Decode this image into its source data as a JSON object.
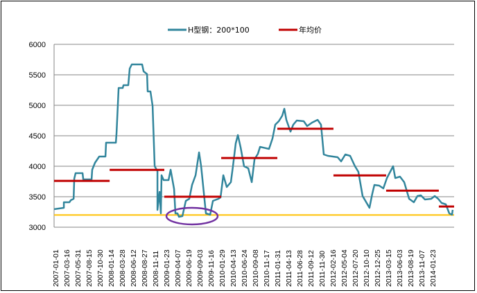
{
  "chart_data": {
    "type": "line",
    "title": "",
    "xlabel": "",
    "ylabel": "",
    "ylim": [
      3000,
      6000
    ],
    "yticks": [
      3000,
      3500,
      4000,
      4500,
      5000,
      5500,
      6000
    ],
    "grid": true,
    "legend_position": "top",
    "categories": [
      "2007-01-01",
      "2007-03-16",
      "2007-05-31",
      "2007-08-15",
      "2007-10-30",
      "2008-01-14",
      "2008-03-28",
      "2008-06-12",
      "2008-08-27",
      "2008-11-11",
      "2009-01-23",
      "2009-04-07",
      "2009-06-19",
      "2009-09-03",
      "2009-11-16",
      "2010-01-29",
      "2010-04-13",
      "2010-06-24",
      "2010-09-08",
      "2010-11-17",
      "2011-01-31",
      "2011-04-13",
      "2011-06-28",
      "2011-09-12",
      "2011-11-30",
      "2012-02-16",
      "2012-05-04",
      "2012-07-20",
      "2012-10-10",
      "2012-12-25",
      "2013-03-15",
      "2013-06-03",
      "2013-08-19",
      "2013-11-07",
      "2014-01-23"
    ],
    "x_unit": "category index (0 = first tick label)",
    "series": [
      {
        "name": "H型钢：200*100",
        "color": "#31859C",
        "points": [
          [
            -0.13,
            3295
          ],
          [
            0.75,
            3318
          ],
          [
            0.75,
            3409
          ],
          [
            1.25,
            3409
          ],
          [
            1.38,
            3443
          ],
          [
            1.63,
            3466
          ],
          [
            1.69,
            3795
          ],
          [
            1.81,
            3886
          ],
          [
            2.44,
            3886
          ],
          [
            2.5,
            3784
          ],
          [
            3.25,
            3784
          ],
          [
            3.31,
            3943
          ],
          [
            3.56,
            4057
          ],
          [
            3.94,
            4159
          ],
          [
            4.5,
            4159
          ],
          [
            4.56,
            4386
          ],
          [
            5.44,
            4386
          ],
          [
            5.5,
            4545
          ],
          [
            5.69,
            5284
          ],
          [
            6.06,
            5284
          ],
          [
            6.13,
            5330
          ],
          [
            6.56,
            5330
          ],
          [
            6.69,
            5602
          ],
          [
            6.88,
            5670
          ],
          [
            7.81,
            5670
          ],
          [
            7.94,
            5557
          ],
          [
            8.25,
            5511
          ],
          [
            8.31,
            5227
          ],
          [
            8.56,
            5227
          ],
          [
            8.75,
            4989
          ],
          [
            8.94,
            4000
          ],
          [
            9.19,
            3920
          ],
          [
            9.19,
            3284
          ],
          [
            9.38,
            3580
          ],
          [
            9.5,
            3227
          ],
          [
            9.56,
            3852
          ],
          [
            9.75,
            3773
          ],
          [
            10.19,
            3773
          ],
          [
            10.38,
            3943
          ],
          [
            10.69,
            3625
          ],
          [
            10.81,
            3227
          ],
          [
            11,
            3227
          ],
          [
            11.13,
            3170
          ],
          [
            11.44,
            3182
          ],
          [
            11.75,
            3432
          ],
          [
            12.06,
            3466
          ],
          [
            12.31,
            3693
          ],
          [
            12.63,
            3852
          ],
          [
            12.94,
            4227
          ],
          [
            13.13,
            4000
          ],
          [
            13.56,
            3227
          ],
          [
            13.94,
            3205
          ],
          [
            14.19,
            3432
          ],
          [
            14.69,
            3466
          ],
          [
            14.88,
            3489
          ],
          [
            15.13,
            3852
          ],
          [
            15.44,
            3659
          ],
          [
            15.81,
            3739
          ],
          [
            16,
            4000
          ],
          [
            16.25,
            4375
          ],
          [
            16.44,
            4511
          ],
          [
            16.69,
            4307
          ],
          [
            17,
            4000
          ],
          [
            17.38,
            3966
          ],
          [
            17.69,
            3739
          ],
          [
            17.94,
            4114
          ],
          [
            18.25,
            4205
          ],
          [
            18.44,
            4318
          ],
          [
            19.25,
            4284
          ],
          [
            19.56,
            4455
          ],
          [
            19.81,
            4682
          ],
          [
            20.13,
            4739
          ],
          [
            20.44,
            4830
          ],
          [
            20.63,
            4943
          ],
          [
            20.81,
            4761
          ],
          [
            21.19,
            4568
          ],
          [
            21.44,
            4682
          ],
          [
            21.75,
            4750
          ],
          [
            22.38,
            4739
          ],
          [
            22.69,
            4659
          ],
          [
            23.13,
            4716
          ],
          [
            23.63,
            4761
          ],
          [
            23.94,
            4682
          ],
          [
            24.19,
            4193
          ],
          [
            24.56,
            4170
          ],
          [
            25.44,
            4148
          ],
          [
            25.75,
            4080
          ],
          [
            26.13,
            4193
          ],
          [
            26.56,
            4170
          ],
          [
            27,
            4000
          ],
          [
            27.31,
            3909
          ],
          [
            27.69,
            3511
          ],
          [
            28.31,
            3318
          ],
          [
            28.56,
            3545
          ],
          [
            28.75,
            3693
          ],
          [
            29.19,
            3682
          ],
          [
            29.56,
            3636
          ],
          [
            29.88,
            3807
          ],
          [
            30.44,
            4000
          ],
          [
            30.63,
            3807
          ],
          [
            31.06,
            3830
          ],
          [
            31.44,
            3739
          ],
          [
            31.88,
            3466
          ],
          [
            32.31,
            3409
          ],
          [
            32.63,
            3511
          ],
          [
            32.94,
            3523
          ],
          [
            33.31,
            3455
          ],
          [
            33.88,
            3466
          ],
          [
            34.19,
            3511
          ],
          [
            34.5,
            3466
          ],
          [
            34.81,
            3398
          ],
          [
            35.19,
            3375
          ],
          [
            35.5,
            3227
          ],
          [
            35.75,
            3205
          ],
          [
            35.81,
            3284
          ]
        ]
      },
      {
        "name": "年均价",
        "color": "#C00000",
        "segments": [
          {
            "x": [
              -0.13,
              4.88
            ],
            "value": 3760
          },
          {
            "x": [
              4.88,
              9.81
            ],
            "value": 3940
          },
          {
            "x": [
              9.81,
              14.94
            ],
            "value": 3500
          },
          {
            "x": [
              14.94,
              20.0
            ],
            "value": 4135
          },
          {
            "x": [
              20.0,
              25.06
            ],
            "value": 4615
          },
          {
            "x": [
              25.06,
              29.81
            ],
            "value": 3850
          },
          {
            "x": [
              29.81,
              34.56
            ],
            "value": 3600
          },
          {
            "x": [
              34.56,
              35.94
            ],
            "value": 3340
          }
        ]
      }
    ],
    "reference_line": {
      "value": 3200,
      "color": "#FFC000"
    },
    "annotation_ellipse": {
      "center_x": 12.31,
      "center_value": 3182,
      "half_width_x": 2.31,
      "half_height_value": 136,
      "color": "#7030A0"
    },
    "x_range": [
      -0.13,
      35.94
    ]
  }
}
